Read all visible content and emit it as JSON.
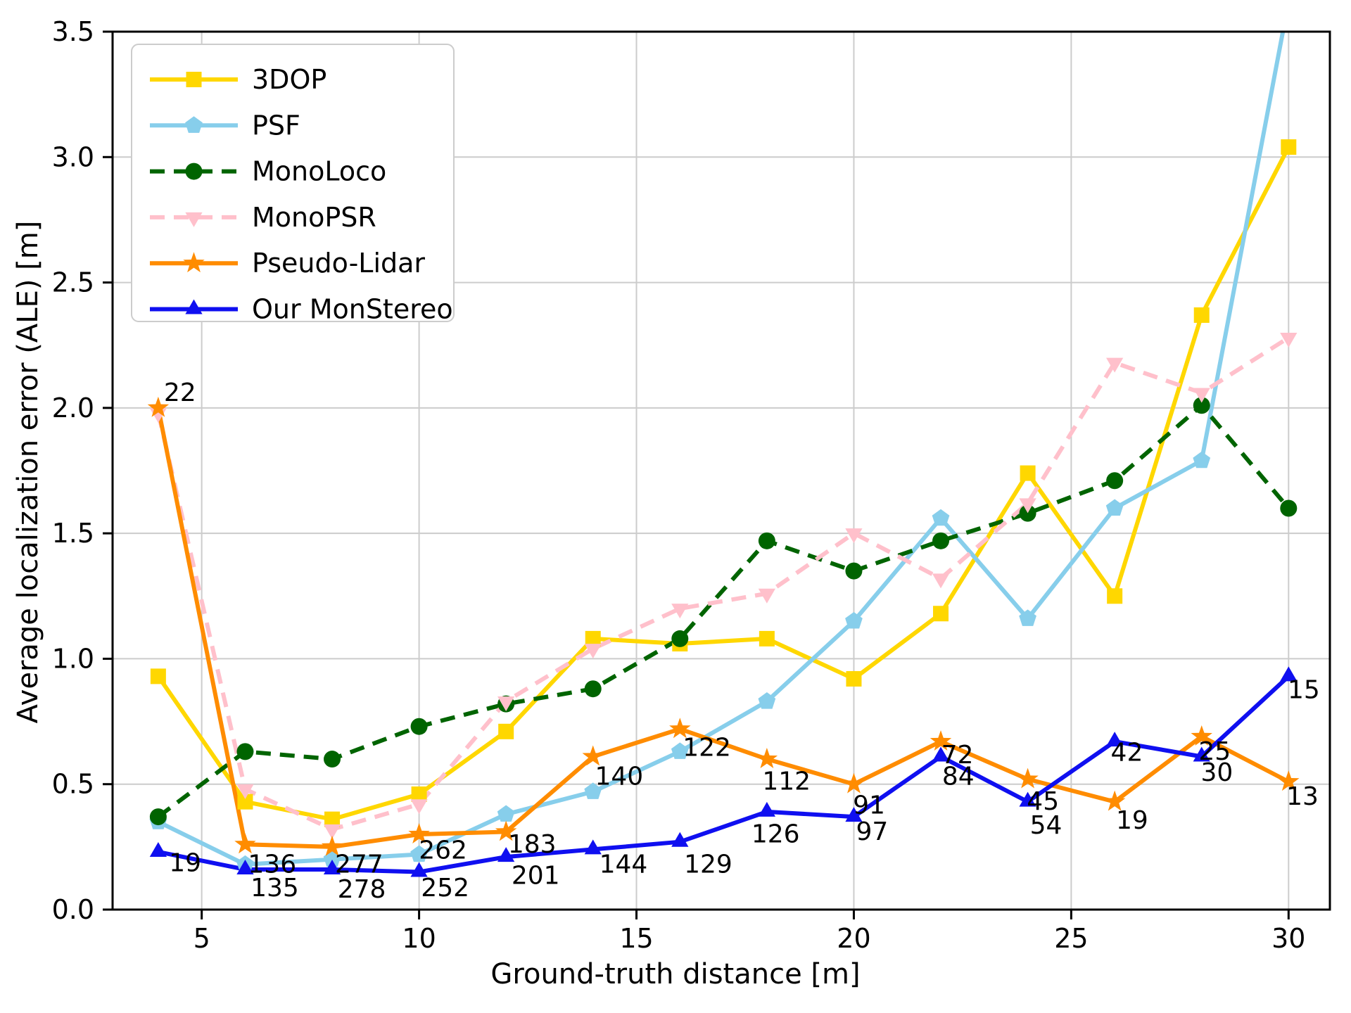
{
  "chart_data": {
    "type": "line",
    "title": "",
    "xlabel": "Ground-truth distance [m]",
    "ylabel": "Average localization error (ALE) [m]",
    "xlim": [
      2.95,
      30.95
    ],
    "ylim": [
      0,
      3.5
    ],
    "xticks": [
      5,
      10,
      15,
      20,
      25,
      30
    ],
    "xtick_labels": [
      "5",
      "10",
      "15",
      "20",
      "25",
      "30"
    ],
    "ytick_labels": [
      "0.0",
      "0.5",
      "1.0",
      "1.5",
      "2.0",
      "2.5",
      "3.0",
      "3.5"
    ],
    "yticks": [
      0,
      0.5,
      1.0,
      1.5,
      2.0,
      2.5,
      3.0,
      3.5
    ],
    "grid": true,
    "grid_color": "#cccccc",
    "legend_position": "upper left",
    "x": [
      4,
      6,
      8,
      10,
      12,
      14,
      16,
      18,
      20,
      22,
      24,
      26,
      28,
      30
    ],
    "series": [
      {
        "name": "3DOP",
        "color": "#FFD700",
        "marker": "square",
        "dash": "solid",
        "values": [
          0.93,
          0.43,
          0.36,
          0.46,
          0.71,
          1.08,
          1.06,
          1.08,
          0.92,
          1.18,
          1.74,
          1.25,
          2.37,
          3.04
        ]
      },
      {
        "name": "PSF",
        "color": "#87CEEB",
        "marker": "pentagon",
        "dash": "solid",
        "values": [
          0.35,
          0.18,
          0.2,
          0.22,
          0.38,
          0.47,
          0.63,
          0.83,
          1.15,
          1.56,
          1.16,
          1.6,
          1.79,
          3.62
        ]
      },
      {
        "name": "MonoLoco",
        "color": "#006400",
        "marker": "circle",
        "dash": "dashed",
        "values": [
          0.37,
          0.63,
          0.6,
          0.73,
          0.82,
          0.88,
          1.08,
          1.47,
          1.35,
          1.47,
          1.58,
          1.71,
          2.01,
          1.6
        ]
      },
      {
        "name": "MonoPSR",
        "color": "#FFC0CB",
        "marker": "triangle-down",
        "dash": "dashed",
        "values": [
          1.98,
          0.48,
          0.32,
          0.42,
          0.83,
          1.04,
          1.2,
          1.26,
          1.5,
          1.32,
          1.62,
          2.18,
          2.06,
          2.28
        ]
      },
      {
        "name": "Pseudo-Lidar",
        "color": "#FF8C00",
        "marker": "star",
        "dash": "solid",
        "values": [
          2.0,
          0.26,
          0.25,
          0.3,
          0.31,
          0.61,
          0.72,
          0.6,
          0.5,
          0.67,
          0.52,
          0.43,
          0.69,
          0.51
        ]
      },
      {
        "name": "Our MonStereo",
        "color": "#0F0FF0",
        "marker": "triangle-up",
        "dash": "solid",
        "values": [
          0.23,
          0.16,
          0.16,
          0.15,
          0.21,
          0.24,
          0.27,
          0.39,
          0.37,
          0.61,
          0.43,
          0.67,
          0.61,
          0.93
        ]
      }
    ],
    "annotations": [
      {
        "x": 4.5,
        "y": 2.06,
        "text": "22"
      },
      {
        "x": 4.62,
        "y": 0.185,
        "text": "19"
      },
      {
        "x": 6.62,
        "y": 0.18,
        "text": "136"
      },
      {
        "x": 6.68,
        "y": 0.085,
        "text": "135"
      },
      {
        "x": 8.62,
        "y": 0.18,
        "text": "277"
      },
      {
        "x": 8.68,
        "y": 0.08,
        "text": "278"
      },
      {
        "x": 10.55,
        "y": 0.235,
        "text": "262"
      },
      {
        "x": 10.6,
        "y": 0.085,
        "text": "252"
      },
      {
        "x": 12.6,
        "y": 0.26,
        "text": "183"
      },
      {
        "x": 12.68,
        "y": 0.135,
        "text": "201"
      },
      {
        "x": 14.6,
        "y": 0.53,
        "text": "140"
      },
      {
        "x": 14.7,
        "y": 0.18,
        "text": "144"
      },
      {
        "x": 16.62,
        "y": 0.645,
        "text": "122"
      },
      {
        "x": 16.65,
        "y": 0.18,
        "text": "129"
      },
      {
        "x": 18.45,
        "y": 0.51,
        "text": "112"
      },
      {
        "x": 18.2,
        "y": 0.3,
        "text": "126"
      },
      {
        "x": 20.35,
        "y": 0.415,
        "text": "91"
      },
      {
        "x": 20.42,
        "y": 0.31,
        "text": "97"
      },
      {
        "x": 22.38,
        "y": 0.615,
        "text": "72"
      },
      {
        "x": 22.4,
        "y": 0.53,
        "text": "84"
      },
      {
        "x": 24.35,
        "y": 0.43,
        "text": "45"
      },
      {
        "x": 24.42,
        "y": 0.335,
        "text": "54"
      },
      {
        "x": 26.28,
        "y": 0.625,
        "text": "42"
      },
      {
        "x": 26.4,
        "y": 0.355,
        "text": "19"
      },
      {
        "x": 28.3,
        "y": 0.63,
        "text": "25"
      },
      {
        "x": 28.35,
        "y": 0.545,
        "text": "30"
      },
      {
        "x": 30.35,
        "y": 0.875,
        "text": "15"
      },
      {
        "x": 30.32,
        "y": 0.45,
        "text": "13"
      }
    ]
  }
}
